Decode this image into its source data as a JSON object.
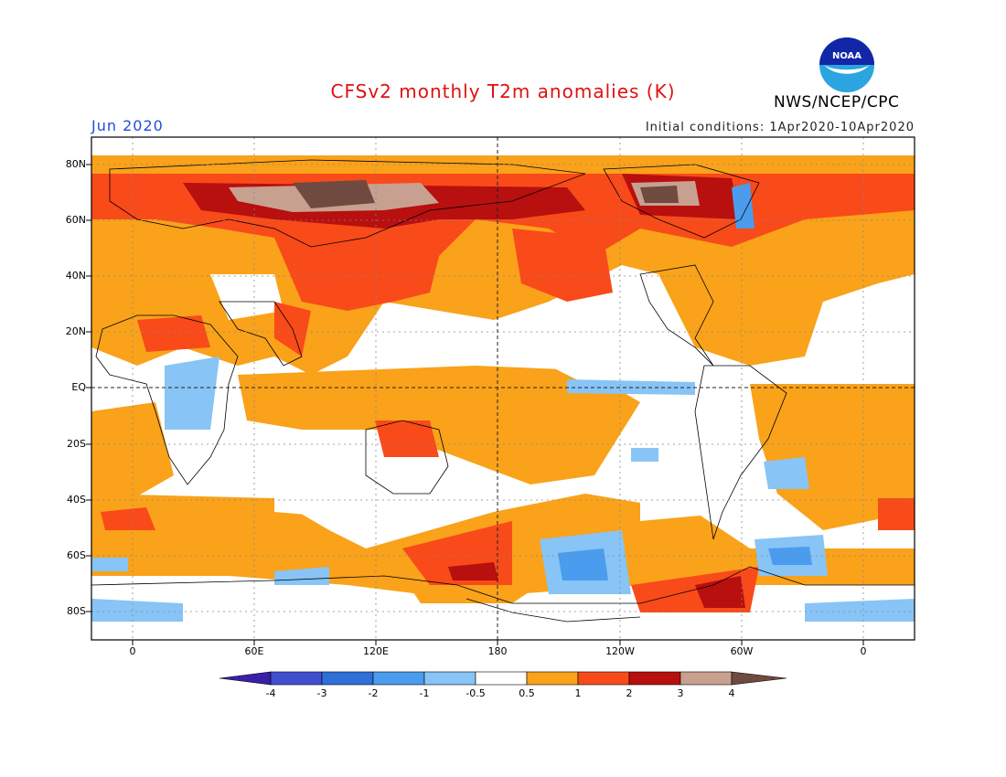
{
  "header": {
    "title": "CFSv2 monthly T2m anomalies (K)",
    "agency": "NWS/NCEP/CPC",
    "month": "Jun 2020",
    "initial_conditions": "Initial conditions: 1Apr2020-10Apr2020",
    "logo_text": "NOAA"
  },
  "map": {
    "lat_labels": [
      "80N",
      "60N",
      "40N",
      "20N",
      "EQ",
      "20S",
      "40S",
      "60S",
      "80S"
    ],
    "lon_labels": [
      "0",
      "60E",
      "120E",
      "180",
      "120W",
      "60W",
      "0"
    ]
  },
  "colorbar": {
    "labels": [
      "-4",
      "-3",
      "-2",
      "-1",
      "-0.5",
      "0.5",
      "1",
      "2",
      "3",
      "4"
    ],
    "colors": [
      "#3a1fa8",
      "#3f4fd0",
      "#2e6fd8",
      "#4a9cee",
      "#88c4f6",
      "#ffffff",
      "#f9a21a",
      "#f94a1a",
      "#b80f0f",
      "#c8a090",
      "#6e4a40"
    ]
  }
}
